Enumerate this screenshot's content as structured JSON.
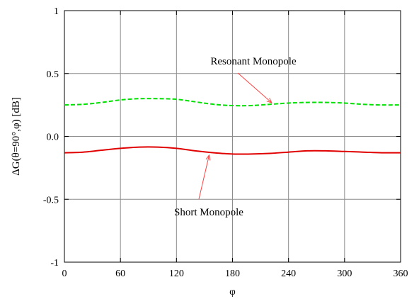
{
  "chart_data": {
    "type": "line",
    "xlabel": "φ",
    "ylabel": "ΔG(θ=90°,φ) [dB]",
    "xlim": [
      0,
      360
    ],
    "ylim": [
      -1,
      1
    ],
    "x_ticks": [
      "0",
      "60",
      "120",
      "180",
      "240",
      "300",
      "360"
    ],
    "y_ticks": [
      "-1",
      "-0.5",
      "0.0",
      "0.5",
      "1"
    ],
    "grid": true,
    "series": [
      {
        "name": "Resonant Monopole",
        "color": "#00e000",
        "line_style": "dashed",
        "x": [
          0,
          20,
          40,
          60,
          80,
          100,
          120,
          140,
          160,
          180,
          200,
          220,
          240,
          260,
          280,
          300,
          320,
          340,
          360
        ],
        "y": [
          0.25,
          0.255,
          0.27,
          0.29,
          0.3,
          0.3,
          0.295,
          0.275,
          0.255,
          0.245,
          0.245,
          0.255,
          0.265,
          0.27,
          0.27,
          0.265,
          0.255,
          0.25,
          0.25
        ]
      },
      {
        "name": "Short Monopole",
        "color": "#e00000",
        "line_style": "solid",
        "x": [
          0,
          20,
          40,
          60,
          80,
          100,
          120,
          140,
          160,
          180,
          200,
          220,
          240,
          260,
          280,
          300,
          320,
          340,
          360
        ],
        "y": [
          -0.13,
          -0.125,
          -0.11,
          -0.095,
          -0.085,
          -0.085,
          -0.095,
          -0.115,
          -0.13,
          -0.14,
          -0.14,
          -0.135,
          -0.125,
          -0.115,
          -0.115,
          -0.12,
          -0.125,
          -0.13,
          -0.13
        ]
      }
    ],
    "annotations": [
      {
        "text": "Resonant Monopole",
        "target_series": "Resonant Monopole",
        "target_x": 222
      },
      {
        "text": "Short Monopole",
        "target_series": "Short Monopole",
        "target_x": 155
      }
    ],
    "annotation_arrow_color": "#ff4040"
  }
}
